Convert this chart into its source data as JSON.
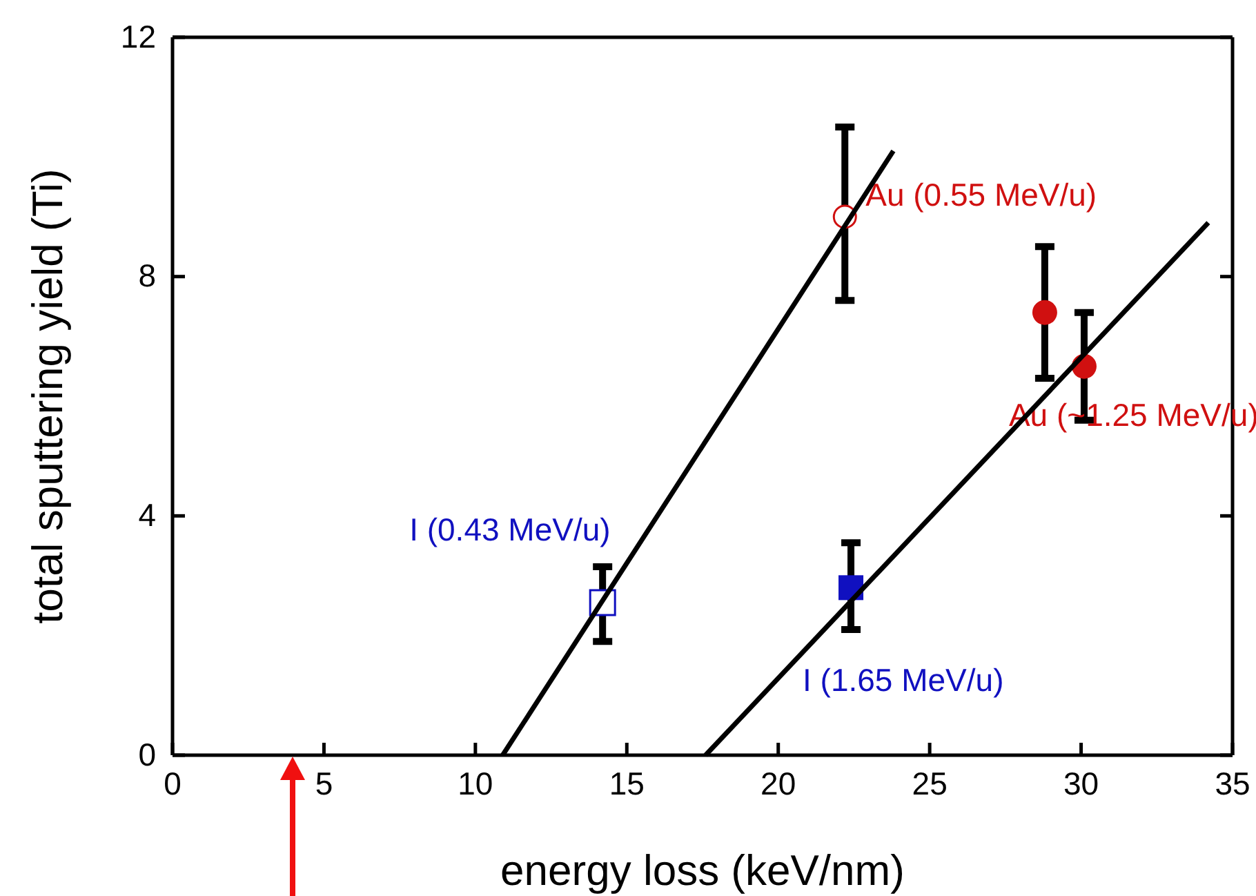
{
  "chart_data": {
    "type": "scatter",
    "xlabel": "energy loss (keV/nm)",
    "ylabel": "total sputtering yield (Ti)",
    "xlim": [
      0,
      35
    ],
    "xticks": [
      0,
      5,
      10,
      15,
      20,
      25,
      30,
      35
    ],
    "ylim": [
      0,
      12
    ],
    "yticks": [
      0,
      4,
      8,
      12
    ],
    "grid": false,
    "series": [
      {
        "name": "Au (0.55 MeV/u)",
        "color": "#d01010",
        "marker": "circle-open",
        "x": [
          22.2
        ],
        "values": [
          9.0
        ],
        "errors": [
          [
            7.6,
            10.5
          ]
        ]
      },
      {
        "name": "Au (~1.25 MeV/u)",
        "color": "#d01010",
        "marker": "circle",
        "x": [
          28.8,
          30.1
        ],
        "values": [
          7.4,
          6.5
        ],
        "errors": [
          [
            6.3,
            8.5
          ],
          [
            5.6,
            7.4
          ]
        ]
      },
      {
        "name": "I (0.43 MeV/u)",
        "color": "#1010c0",
        "marker": "square-open",
        "x": [
          14.2
        ],
        "values": [
          2.55
        ],
        "errors": [
          [
            1.9,
            3.15
          ]
        ]
      },
      {
        "name": "I (1.65 MeV/u)",
        "color": "#1010c0",
        "marker": "square",
        "x": [
          22.4
        ],
        "values": [
          2.8
        ],
        "errors": [
          [
            2.1,
            3.55
          ]
        ]
      },
      {
        "type": "line",
        "color": "#000000",
        "marker": "none",
        "x": [
          10.9,
          23.8
        ],
        "values": [
          0,
          10.1
        ]
      },
      {
        "type": "line",
        "color": "#000000",
        "marker": "none",
        "x": [
          17.6,
          34.2
        ],
        "values": [
          0,
          8.9
        ]
      }
    ]
  }
}
